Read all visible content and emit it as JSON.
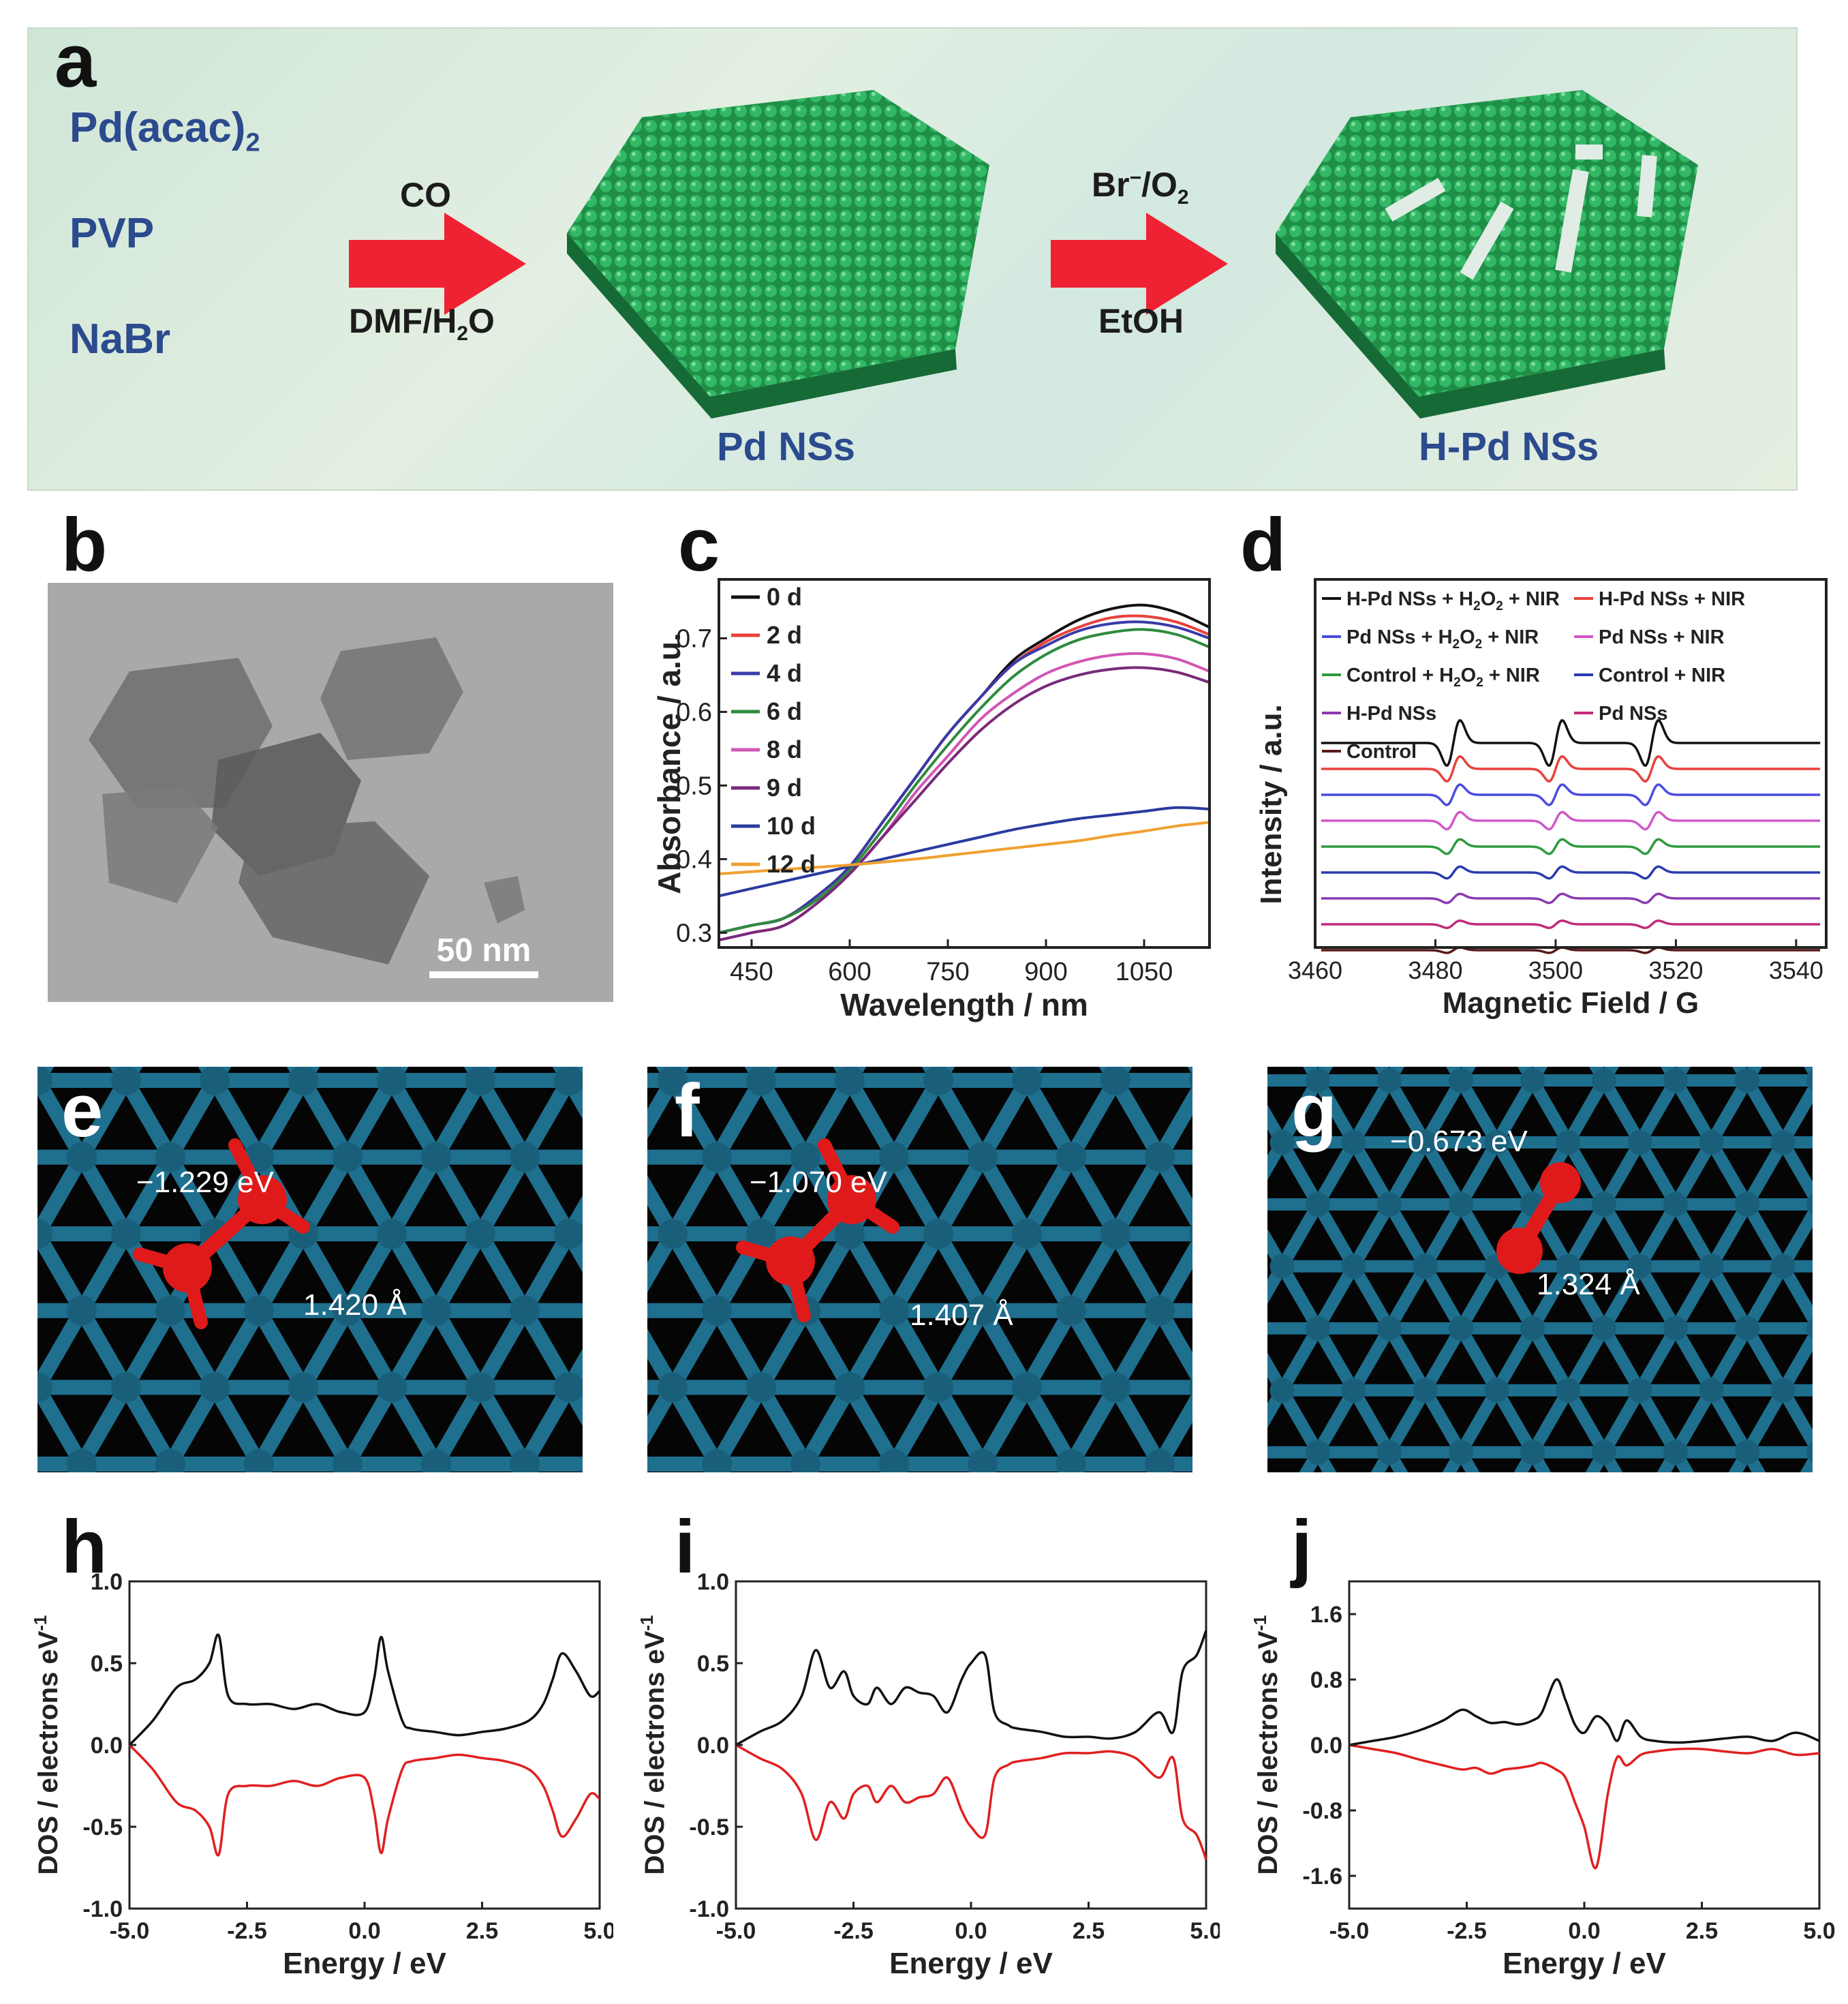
{
  "panel_labels": {
    "a": "a",
    "b": "b",
    "c": "c",
    "d": "d",
    "e": "e",
    "f": "f",
    "g": "g",
    "h": "h",
    "i": "i",
    "j": "j"
  },
  "colors": {
    "blue_text": "#2c4a8e",
    "arrow": "#ee2233",
    "sheet_green": "#27a35a",
    "lattice": "#1f6f8e",
    "oxygen": "#e01a1a"
  },
  "scheme": {
    "reagent_1": "Pd(acac)",
    "reagent_1_sub": "2",
    "reagent_2": "PVP",
    "reagent_3": "NaBr",
    "step1_top": "CO",
    "step1_bottom_a": "DMF/H",
    "step1_bottom_sub": "2",
    "step1_bottom_b": "O",
    "step2_top_a": "Br",
    "step2_top_sup": "−",
    "step2_top_b": "/O",
    "step2_top_sub": "2",
    "step2_bottom": "EtOH",
    "product_1": "Pd NSs",
    "product_2": "H-Pd NSs"
  },
  "tem": {
    "scale_bar_label": "50 nm"
  },
  "dft_sites": [
    {
      "energy": "−1.229 eV",
      "bond_length": "1.420 Å"
    },
    {
      "energy": "−1.070 eV",
      "bond_length": "1.407 Å"
    },
    {
      "energy": "−0.673 eV",
      "bond_length": "1.324 Å"
    }
  ],
  "chart_data": [
    {
      "id": "c",
      "type": "line",
      "xlabel": "Wavelength / nm",
      "ylabel": "Absorbance / a.u.",
      "xlim": [
        400,
        1150
      ],
      "ylim": [
        0.28,
        0.78
      ],
      "xticks": [
        450,
        600,
        750,
        900,
        1050
      ],
      "yticks": [
        0.3,
        0.4,
        0.5,
        0.6,
        0.7
      ],
      "ytick_labels": [
        "0.3",
        "0.4",
        "0.5",
        "0.6",
        "0.7"
      ],
      "legend_position": "top-left",
      "x": [
        400,
        450,
        500,
        550,
        600,
        650,
        700,
        750,
        800,
        850,
        900,
        950,
        1000,
        1050,
        1100,
        1150
      ],
      "series": [
        {
          "name": "0 d",
          "color": "#111111",
          "values": [
            0.3,
            0.31,
            0.32,
            0.35,
            0.39,
            0.45,
            0.51,
            0.57,
            0.62,
            0.67,
            0.7,
            0.725,
            0.74,
            0.745,
            0.735,
            0.715
          ]
        },
        {
          "name": "2 d",
          "color": "#e8413a",
          "values": [
            0.3,
            0.31,
            0.32,
            0.35,
            0.39,
            0.45,
            0.51,
            0.57,
            0.62,
            0.665,
            0.695,
            0.715,
            0.728,
            0.73,
            0.722,
            0.705
          ]
        },
        {
          "name": "4 d",
          "color": "#3a3aa8",
          "values": [
            0.3,
            0.31,
            0.32,
            0.35,
            0.39,
            0.45,
            0.51,
            0.57,
            0.62,
            0.665,
            0.69,
            0.71,
            0.72,
            0.722,
            0.715,
            0.7
          ]
        },
        {
          "name": "6 d",
          "color": "#2e8b3e",
          "values": [
            0.3,
            0.31,
            0.32,
            0.345,
            0.385,
            0.44,
            0.5,
            0.555,
            0.605,
            0.648,
            0.678,
            0.698,
            0.708,
            0.712,
            0.705,
            0.688
          ]
        },
        {
          "name": "8 d",
          "color": "#d256b4",
          "values": [
            0.29,
            0.3,
            0.31,
            0.34,
            0.38,
            0.43,
            0.49,
            0.54,
            0.59,
            0.625,
            0.652,
            0.668,
            0.677,
            0.679,
            0.672,
            0.655
          ]
        },
        {
          "name": "9 d",
          "color": "#7a2a7a",
          "values": [
            0.29,
            0.3,
            0.31,
            0.34,
            0.38,
            0.43,
            0.48,
            0.53,
            0.575,
            0.61,
            0.635,
            0.65,
            0.658,
            0.66,
            0.654,
            0.64
          ]
        },
        {
          "name": "10 d",
          "color": "#2a3aa0",
          "values": [
            0.35,
            0.36,
            0.37,
            0.38,
            0.39,
            0.4,
            0.41,
            0.42,
            0.43,
            0.44,
            0.448,
            0.455,
            0.46,
            0.465,
            0.47,
            0.468
          ]
        },
        {
          "name": "12 d",
          "color": "#f0a030",
          "values": [
            0.38,
            0.383,
            0.386,
            0.389,
            0.392,
            0.396,
            0.4,
            0.405,
            0.41,
            0.415,
            0.42,
            0.425,
            0.432,
            0.438,
            0.445,
            0.45
          ]
        }
      ]
    },
    {
      "id": "d",
      "type": "line",
      "xlabel": "Magnetic Field / G",
      "ylabel": "Intensity / a.u.",
      "xlim": [
        3460,
        3545
      ],
      "xticks": [
        3460,
        3480,
        3500,
        3520,
        3540
      ],
      "peaks": [
        3483,
        3500,
        3516
      ],
      "legend_position": "top",
      "series": [
        {
          "name": "H-Pd NSs + H2O2 + NIR",
          "label_a": "H-Pd NSs + H",
          "label_sub": "2",
          "label_b": "O",
          "label_sub2": "2",
          "label_c": " + NIR",
          "color": "#111111",
          "amplitude": 1.0
        },
        {
          "name": "H-Pd NSs + NIR",
          "label_a": "H-Pd NSs + NIR",
          "color": "#e8413a",
          "amplitude": 0.55
        },
        {
          "name": "Pd NSs + H2O2 + NIR",
          "label_a": "Pd NSs + H",
          "label_sub": "2",
          "label_b": "O",
          "label_sub2": "2",
          "label_c": " + NIR",
          "color": "#4a4ae0",
          "amplitude": 0.45
        },
        {
          "name": "Pd NSs + NIR",
          "label_a": "Pd NSs + NIR",
          "color": "#d256c8",
          "amplitude": 0.38
        },
        {
          "name": "Control + H2O2 + NIR",
          "label_a": "Control + H",
          "label_sub": "2",
          "label_b": "O",
          "label_sub2": "2",
          "label_c": " + NIR",
          "color": "#2e9a3e",
          "amplitude": 0.32
        },
        {
          "name": "Control + NIR",
          "label_a": "Control + NIR",
          "color": "#2a3ab0",
          "amplitude": 0.26
        },
        {
          "name": "H-Pd NSs",
          "label_a": "H-Pd NSs",
          "color": "#8a3ab0",
          "amplitude": 0.2
        },
        {
          "name": "Pd NSs",
          "label_a": "Pd NSs",
          "color": "#c02a7a",
          "amplitude": 0.16
        },
        {
          "name": "Control",
          "label_a": "Control",
          "color": "#5a1a1a",
          "amplitude": 0.12
        }
      ]
    },
    {
      "id": "h",
      "type": "line",
      "xlabel": "Energy / eV",
      "ylabel": "DOS / electrons eV",
      "ylabel_sup": "-1",
      "xlim": [
        -5,
        5
      ],
      "ylim": [
        -1,
        1
      ],
      "xticks": [
        -5,
        -2.5,
        0,
        2.5,
        5
      ],
      "xtick_labels": [
        "-5.0",
        "-2.5",
        "0.0",
        "2.5",
        "5.0"
      ],
      "yticks": [
        -1,
        -0.5,
        0,
        0.5,
        1
      ],
      "ytick_labels": [
        "-1.0",
        "-0.5",
        "0.0",
        "0.5",
        "1.0"
      ],
      "x": [
        -5,
        -4.5,
        -4,
        -3.6,
        -3.3,
        -3.1,
        -2.9,
        -2.5,
        -2,
        -1.5,
        -1,
        -0.5,
        0,
        0.2,
        0.35,
        0.5,
        0.8,
        1,
        1.5,
        2,
        2.5,
        3,
        3.5,
        3.8,
        4,
        4.2,
        4.5,
        4.8,
        5
      ],
      "series": [
        {
          "name": "spin up",
          "color": "#111111",
          "values": [
            0,
            0.15,
            0.35,
            0.4,
            0.5,
            0.67,
            0.3,
            0.25,
            0.25,
            0.22,
            0.25,
            0.2,
            0.2,
            0.4,
            0.66,
            0.45,
            0.15,
            0.1,
            0.08,
            0.06,
            0.08,
            0.1,
            0.15,
            0.25,
            0.4,
            0.56,
            0.45,
            0.3,
            0.33
          ]
        },
        {
          "name": "spin down",
          "color": "#e02020",
          "values": [
            0,
            -0.15,
            -0.35,
            -0.4,
            -0.5,
            -0.67,
            -0.3,
            -0.25,
            -0.25,
            -0.22,
            -0.25,
            -0.2,
            -0.2,
            -0.4,
            -0.66,
            -0.45,
            -0.15,
            -0.1,
            -0.08,
            -0.06,
            -0.08,
            -0.1,
            -0.15,
            -0.25,
            -0.4,
            -0.56,
            -0.45,
            -0.3,
            -0.33
          ]
        }
      ]
    },
    {
      "id": "i",
      "type": "line",
      "xlabel": "Energy / eV",
      "ylabel": "DOS / electrons eV",
      "ylabel_sup": "-1",
      "xlim": [
        -5,
        5
      ],
      "ylim": [
        -1,
        1
      ],
      "xticks": [
        -5,
        -2.5,
        0,
        2.5,
        5
      ],
      "xtick_labels": [
        "-5.0",
        "-2.5",
        "0.0",
        "2.5",
        "5.0"
      ],
      "yticks": [
        -1,
        -0.5,
        0,
        0.5,
        1
      ],
      "ytick_labels": [
        "-1.0",
        "-0.5",
        "0.0",
        "0.5",
        "1.0"
      ],
      "x": [
        -5,
        -4.5,
        -4,
        -3.6,
        -3.3,
        -3,
        -2.7,
        -2.5,
        -2.2,
        -2,
        -1.7,
        -1.4,
        -1.1,
        -0.8,
        -0.5,
        -0.2,
        0,
        0.3,
        0.5,
        0.8,
        1,
        1.5,
        2,
        2.5,
        3,
        3.5,
        4,
        4.3,
        4.5,
        4.8,
        5
      ],
      "series": [
        {
          "name": "spin up",
          "color": "#111111",
          "values": [
            0,
            0.08,
            0.15,
            0.3,
            0.58,
            0.35,
            0.45,
            0.3,
            0.25,
            0.35,
            0.25,
            0.35,
            0.32,
            0.3,
            0.2,
            0.4,
            0.5,
            0.55,
            0.2,
            0.12,
            0.1,
            0.08,
            0.05,
            0.05,
            0.04,
            0.08,
            0.2,
            0.08,
            0.45,
            0.55,
            0.7
          ]
        },
        {
          "name": "spin down",
          "color": "#e02020",
          "values": [
            0,
            -0.08,
            -0.15,
            -0.3,
            -0.58,
            -0.35,
            -0.45,
            -0.3,
            -0.25,
            -0.35,
            -0.25,
            -0.35,
            -0.32,
            -0.3,
            -0.2,
            -0.4,
            -0.5,
            -0.55,
            -0.2,
            -0.12,
            -0.1,
            -0.08,
            -0.05,
            -0.05,
            -0.04,
            -0.08,
            -0.2,
            -0.08,
            -0.45,
            -0.55,
            -0.7
          ]
        }
      ]
    },
    {
      "id": "j",
      "type": "line",
      "xlabel": "Energy / eV",
      "ylabel": "DOS / electrons eV",
      "ylabel_sup": "-1",
      "xlim": [
        -5,
        5
      ],
      "ylim": [
        -2,
        2
      ],
      "xticks": [
        -5,
        -2.5,
        0,
        2.5,
        5
      ],
      "xtick_labels": [
        "-5.0",
        "-2.5",
        "0.0",
        "2.5",
        "5.0"
      ],
      "yticks": [
        -1.6,
        -0.8,
        0,
        0.8,
        1.6
      ],
      "ytick_labels": [
        "-1.6",
        "-0.8",
        "0.0",
        "0.8",
        "1.6"
      ],
      "x": [
        -5,
        -4.5,
        -4,
        -3.5,
        -3,
        -2.6,
        -2.3,
        -2,
        -1.7,
        -1.4,
        -1.1,
        -0.9,
        -0.6,
        -0.4,
        -0.2,
        0,
        0.25,
        0.5,
        0.7,
        0.9,
        1.2,
        1.5,
        2,
        2.5,
        3,
        3.5,
        4,
        4.5,
        5
      ],
      "series": [
        {
          "name": "spin up",
          "color": "#111111",
          "values": [
            0,
            0.05,
            0.1,
            0.18,
            0.3,
            0.43,
            0.35,
            0.27,
            0.28,
            0.25,
            0.3,
            0.4,
            0.8,
            0.55,
            0.25,
            0.15,
            0.35,
            0.25,
            0.05,
            0.3,
            0.1,
            0.05,
            0.03,
            0.05,
            0.08,
            0.1,
            0.05,
            0.15,
            0.05
          ]
        },
        {
          "name": "spin down",
          "color": "#e02020",
          "values": [
            0,
            -0.05,
            -0.1,
            -0.18,
            -0.25,
            -0.3,
            -0.28,
            -0.35,
            -0.3,
            -0.28,
            -0.25,
            -0.22,
            -0.3,
            -0.4,
            -0.7,
            -1.0,
            -1.5,
            -0.6,
            -0.15,
            -0.25,
            -0.12,
            -0.08,
            -0.05,
            -0.05,
            -0.08,
            -0.1,
            -0.05,
            -0.12,
            -0.1
          ]
        }
      ]
    }
  ]
}
